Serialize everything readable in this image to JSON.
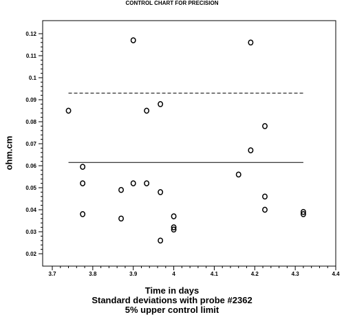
{
  "chart_data": {
    "type": "scatter",
    "title": "CONTROL CHART FOR PRECISION",
    "xlabel": "Time in days",
    "ylabel": "ohm.cm",
    "captions": [
      "Standard deviations with probe #2362",
      "5% upper control limit"
    ],
    "xlim": [
      3.7,
      4.4
    ],
    "ylim": [
      0.02,
      0.12
    ],
    "xticks": [
      3.7,
      3.8,
      3.9,
      4.0,
      4.1,
      4.2,
      4.3,
      4.4
    ],
    "xtick_labels": [
      "3.7",
      "3.8",
      "3.9",
      "4",
      "4.1",
      "4.2",
      "4.3",
      "4.4"
    ],
    "yticks": [
      0.02,
      0.03,
      0.04,
      0.05,
      0.06,
      0.07,
      0.08,
      0.09,
      0.1,
      0.11,
      0.12
    ],
    "ytick_labels": [
      "0.02",
      "0.03",
      "0.04",
      "0.05",
      "0.06",
      "0.07",
      "0.08",
      "0.09",
      "0.1",
      "0.11",
      "0.12"
    ],
    "points": [
      {
        "x": 3.74,
        "y": 0.085
      },
      {
        "x": 3.775,
        "y": 0.0595
      },
      {
        "x": 3.775,
        "y": 0.052
      },
      {
        "x": 3.775,
        "y": 0.038
      },
      {
        "x": 3.87,
        "y": 0.049
      },
      {
        "x": 3.87,
        "y": 0.036
      },
      {
        "x": 3.9,
        "y": 0.117
      },
      {
        "x": 3.9,
        "y": 0.052
      },
      {
        "x": 3.933,
        "y": 0.085
      },
      {
        "x": 3.933,
        "y": 0.052
      },
      {
        "x": 3.967,
        "y": 0.088
      },
      {
        "x": 3.967,
        "y": 0.048
      },
      {
        "x": 3.967,
        "y": 0.026
      },
      {
        "x": 4.0,
        "y": 0.037
      },
      {
        "x": 4.0,
        "y": 0.032
      },
      {
        "x": 4.0,
        "y": 0.031
      },
      {
        "x": 4.16,
        "y": 0.056
      },
      {
        "x": 4.19,
        "y": 0.116
      },
      {
        "x": 4.19,
        "y": 0.067
      },
      {
        "x": 4.225,
        "y": 0.078
      },
      {
        "x": 4.225,
        "y": 0.046
      },
      {
        "x": 4.225,
        "y": 0.04
      },
      {
        "x": 4.32,
        "y": 0.039
      },
      {
        "x": 4.32,
        "y": 0.038
      }
    ],
    "reference_lines": [
      {
        "style": "dashed",
        "y": 0.093,
        "x_range": [
          3.74,
          4.32
        ]
      },
      {
        "style": "solid",
        "y": 0.0615,
        "x_range": [
          3.74,
          4.32
        ]
      }
    ],
    "grid": false
  }
}
